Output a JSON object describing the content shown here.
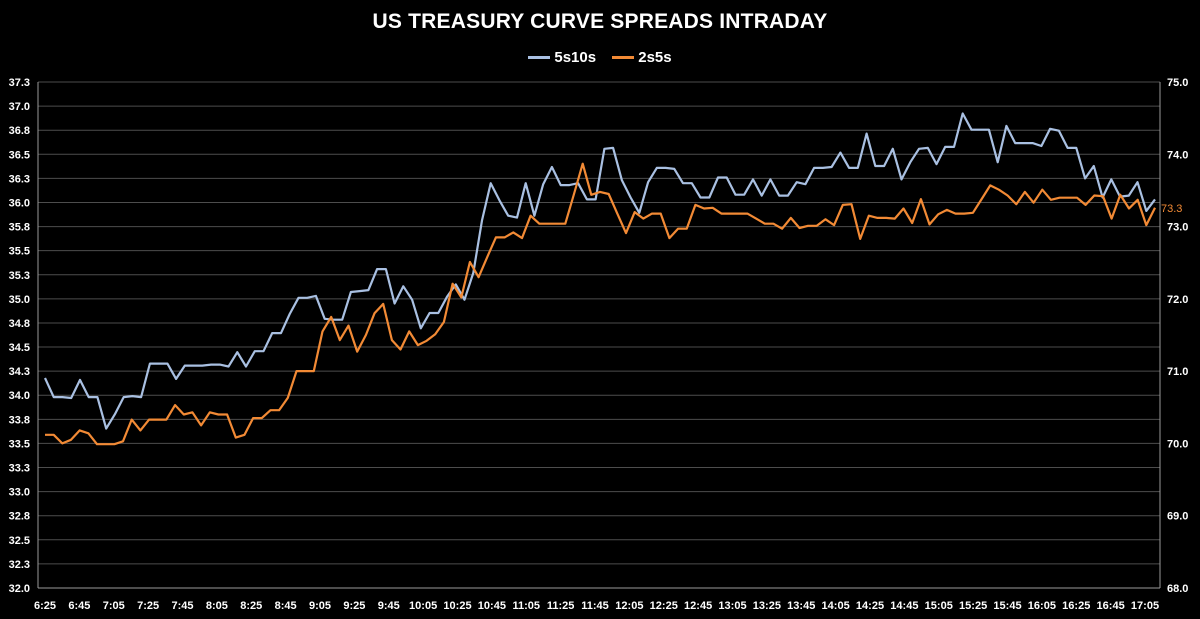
{
  "chart_data": {
    "type": "line",
    "title": "US TREASURY CURVE SPREADS INTRADAY",
    "xlabel": "",
    "ylabel": "",
    "x_tick_labels": [
      "6:25",
      "6:45",
      "7:05",
      "7:25",
      "7:45",
      "8:05",
      "8:25",
      "8:45",
      "9:05",
      "9:25",
      "9:45",
      "10:05",
      "10:25",
      "10:45",
      "11:05",
      "11:25",
      "11:45",
      "12:05",
      "12:25",
      "12:45",
      "13:05",
      "13:25",
      "13:45",
      "14:05",
      "14:25",
      "14:45",
      "15:05",
      "15:25",
      "15:45",
      "16:05",
      "16:25",
      "16:45",
      "17:05"
    ],
    "ylim_left": [
      32.0,
      37.3
    ],
    "ylim_right": [
      68.0,
      75.0
    ],
    "y_left_ticks": [
      "32.0",
      "32.3",
      "32.5",
      "32.8",
      "33.0",
      "33.3",
      "33.5",
      "33.8",
      "34.0",
      "34.3",
      "34.5",
      "34.8",
      "35.0",
      "35.3",
      "35.5",
      "35.8",
      "36.0",
      "36.3",
      "36.5",
      "36.8",
      "37.0",
      "37.3"
    ],
    "y_right_ticks": [
      "68.0",
      "69.0",
      "70.0",
      "71.0",
      "72.0",
      "73.0",
      "74.0",
      "75.0"
    ],
    "grid": true,
    "legend_position": "top-center",
    "last_value_label": "73.3",
    "series": [
      {
        "name": "5s10s",
        "color": "#a9c0e2",
        "axis": "left",
        "values": [
          34.2,
          34.0,
          34.0,
          33.99,
          34.18,
          34.0,
          34.0,
          33.67,
          33.82,
          34.0,
          34.01,
          34.0,
          34.35,
          34.35,
          34.35,
          34.19,
          34.33,
          34.33,
          34.33,
          34.34,
          34.34,
          34.32,
          34.47,
          34.32,
          34.48,
          34.48,
          34.67,
          34.67,
          34.87,
          35.04,
          35.04,
          35.06,
          34.82,
          34.81,
          34.81,
          35.1,
          35.11,
          35.12,
          35.34,
          35.34,
          34.98,
          35.16,
          35.02,
          34.72,
          34.88,
          34.88,
          35.05,
          35.18,
          35.02,
          35.3,
          35.85,
          36.24,
          36.06,
          35.9,
          35.88,
          36.24,
          35.9,
          36.23,
          36.41,
          36.22,
          36.22,
          36.24,
          36.07,
          36.07,
          36.6,
          36.61,
          36.27,
          36.09,
          35.93,
          36.25,
          36.4,
          36.4,
          36.39,
          36.24,
          36.24,
          36.09,
          36.09,
          36.3,
          36.3,
          36.12,
          36.12,
          36.28,
          36.11,
          36.28,
          36.11,
          36.11,
          36.25,
          36.23,
          36.4,
          36.4,
          36.41,
          36.56,
          36.4,
          36.4,
          36.76,
          36.42,
          36.42,
          36.6,
          36.28,
          36.46,
          36.6,
          36.61,
          36.44,
          36.62,
          36.62,
          36.97,
          36.8,
          36.8,
          36.8,
          36.46,
          36.84,
          36.66,
          36.66,
          36.66,
          36.63,
          36.81,
          36.79,
          36.61,
          36.61,
          36.29,
          36.42,
          36.09,
          36.28,
          36.1,
          36.11,
          36.25,
          35.95,
          36.07
        ]
      },
      {
        "name": "2s5s",
        "color": "#f28a35",
        "axis": "right",
        "values": [
          70.12,
          70.12,
          70.0,
          70.05,
          70.18,
          70.14,
          69.99,
          69.99,
          69.99,
          70.03,
          70.33,
          70.18,
          70.33,
          70.33,
          70.33,
          70.53,
          70.4,
          70.43,
          70.25,
          70.43,
          70.4,
          70.4,
          70.08,
          70.12,
          70.35,
          70.35,
          70.46,
          70.46,
          70.63,
          71.0,
          71.0,
          71.0,
          71.55,
          71.75,
          71.43,
          71.63,
          71.27,
          71.5,
          71.8,
          71.93,
          71.43,
          71.3,
          71.55,
          71.36,
          71.42,
          71.51,
          71.68,
          72.21,
          72.02,
          72.51,
          72.3,
          72.58,
          72.85,
          72.85,
          72.92,
          72.84,
          73.15,
          73.04,
          73.04,
          73.04,
          73.04,
          73.45,
          73.87,
          73.44,
          73.48,
          73.45,
          73.18,
          72.91,
          73.2,
          73.11,
          73.18,
          73.18,
          72.84,
          72.97,
          72.97,
          73.3,
          73.25,
          73.26,
          73.18,
          73.18,
          73.18,
          73.18,
          73.11,
          73.04,
          73.04,
          72.97,
          73.12,
          72.98,
          73.01,
          73.01,
          73.1,
          73.02,
          73.3,
          73.31,
          72.83,
          73.15,
          73.12,
          73.12,
          73.11,
          73.25,
          73.05,
          73.38,
          73.03,
          73.17,
          73.23,
          73.18,
          73.18,
          73.19,
          73.38,
          73.57,
          73.51,
          73.43,
          73.31,
          73.48,
          73.33,
          73.51,
          73.37,
          73.4,
          73.4,
          73.4,
          73.3,
          73.43,
          73.42,
          73.11,
          73.44,
          73.25,
          73.37,
          73.02,
          73.26
        ]
      }
    ]
  }
}
